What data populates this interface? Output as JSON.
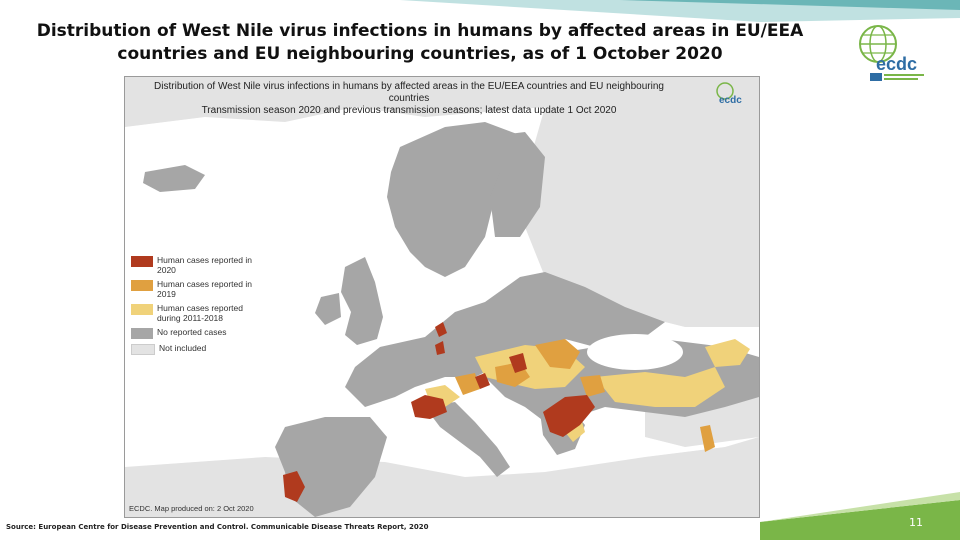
{
  "slide": {
    "title": "Distribution of West Nile virus infections in humans by affected areas in EU/EEA countries and EU neighbouring countries, as of 1 October 2020",
    "source": "Source: European Centre for Disease Prevention and Control. Communicable Disease Threats Report, 2020",
    "slide_number": "11"
  },
  "logo": {
    "icon": "ecdc-globe-logo",
    "text": "ecdc"
  },
  "map": {
    "title_line1": "Distribution of West Nile virus infections in humans by affected areas in the EU/EEA countries and EU neighbouring countries",
    "title_line2": "Transmission season 2020 and previous transmission seasons; latest data update 1 Oct 2020",
    "credit": "ECDC. Map produced on: 2 Oct 2020",
    "inner_logo_text": "ecdc",
    "legend": [
      {
        "label": "Human cases reported in 2020",
        "color": "#b03a1e"
      },
      {
        "label": "Human cases reported in 2019",
        "color": "#e0a040"
      },
      {
        "label": "Human cases reported during 2011-2018",
        "color": "#f0d27a"
      },
      {
        "label": "No reported cases",
        "color": "#a6a6a6"
      },
      {
        "label": "Not included",
        "color": "#e3e3e3"
      }
    ]
  },
  "colors": {
    "sea": "#ffffff",
    "not_included": "#e3e3e3",
    "no_cases": "#a6a6a6",
    "cases_2020": "#b03a1e",
    "cases_2019": "#e0a040",
    "cases_2011_2018": "#f0d27a",
    "accent_teal": "#4fa7a8",
    "accent_green": "#7ab648"
  }
}
